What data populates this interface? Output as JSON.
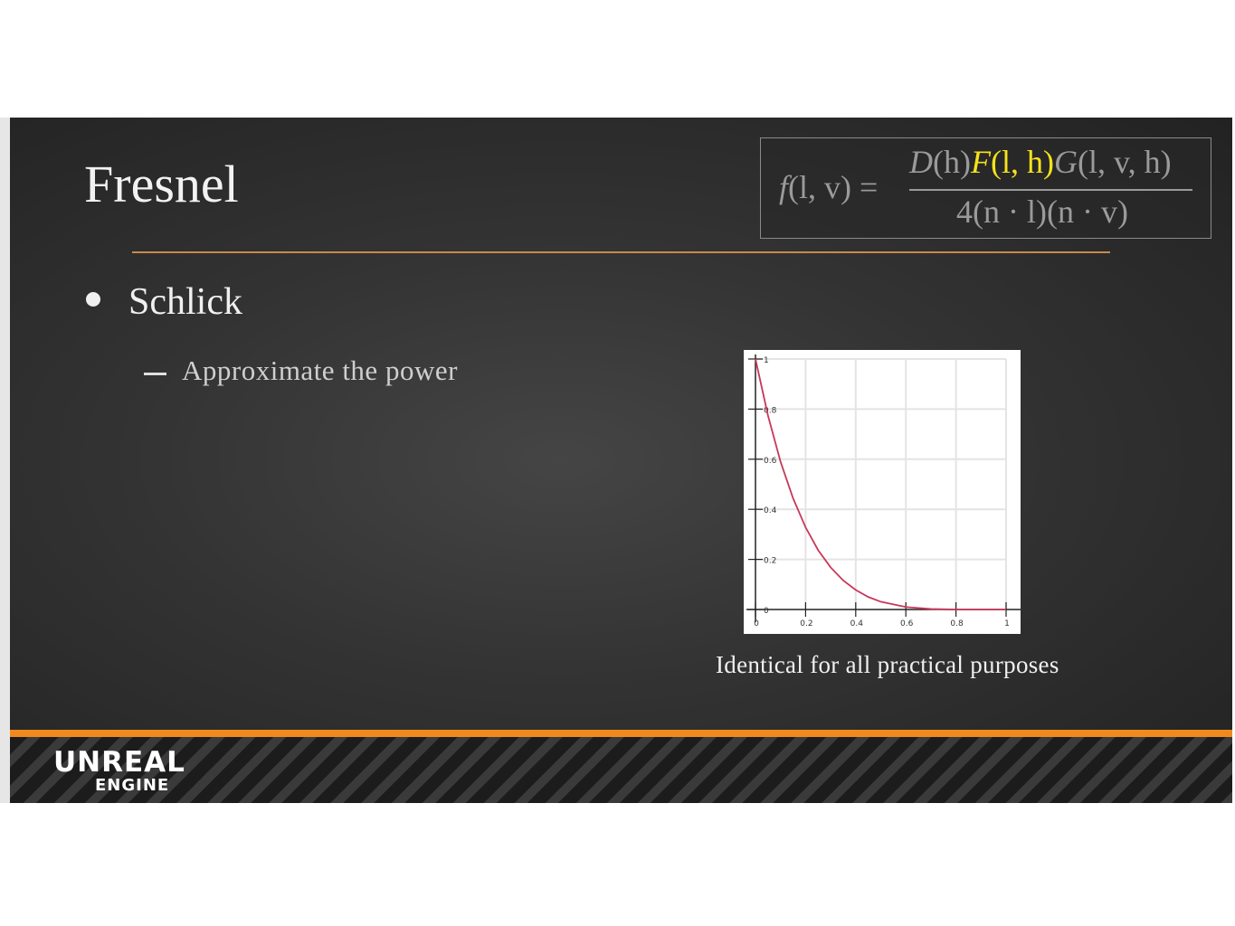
{
  "slide": {
    "title": "Fresnel",
    "bullet": "Schlick",
    "sub_bullet": "Approximate the power",
    "caption": "Identical for all practical purposes"
  },
  "formula": {
    "lhs_func": "f",
    "lhs_args": "(l, v) =",
    "num_D": "D",
    "num_D_args": "(h)",
    "num_F": "F",
    "num_F_args": "(l, h)",
    "num_G": "G",
    "num_G_args": "(l, v, h)",
    "denominator": "4(n · l)(n · v)",
    "highlight_color": "#f5e21c"
  },
  "logo": {
    "main": "UNREAL",
    "sub": "ENGINE"
  },
  "colors": {
    "accent_orange": "#f08a1e",
    "rule": "#c88a4a",
    "curve": "#c8385a"
  },
  "chart_data": {
    "type": "line",
    "x_ticks": [
      "0",
      "0.2",
      "0.4",
      "0.6",
      "0.8",
      "1"
    ],
    "y_ticks": [
      "0",
      "0.2",
      "0.4",
      "0.6",
      "0.8",
      "1"
    ],
    "xlim": [
      0,
      1
    ],
    "ylim": [
      0,
      1
    ],
    "grid": true,
    "series": [
      {
        "x": [
          0,
          0.05,
          0.1,
          0.15,
          0.2,
          0.25,
          0.3,
          0.35,
          0.4,
          0.45,
          0.5,
          0.6,
          0.7,
          0.8,
          0.9,
          1.0
        ],
        "y": [
          1,
          0.774,
          0.59,
          0.444,
          0.328,
          0.237,
          0.168,
          0.116,
          0.078,
          0.05,
          0.031,
          0.01,
          0.002,
          0.0,
          0.0,
          0.0
        ]
      }
    ]
  }
}
